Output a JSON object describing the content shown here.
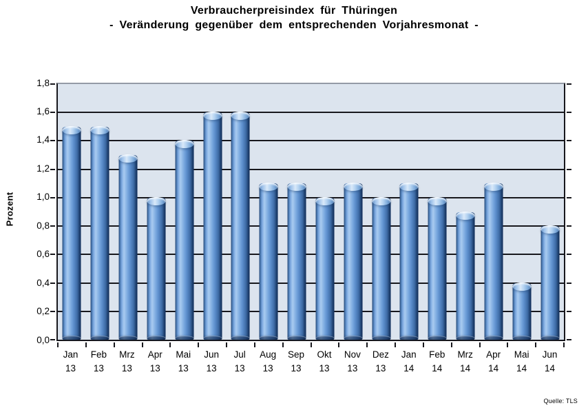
{
  "title": {
    "line1": "Verbraucherpreisindex für Thüringen",
    "line2": "- Veränderung gegenüber dem entsprechenden Vorjahresmonat -"
  },
  "source": "Quelle: TLS",
  "chart_data": {
    "type": "bar",
    "title": "Verbraucherpreisindex für Thüringen - Veränderung gegenüber dem entsprechenden Vorjahresmonat -",
    "xlabel": "",
    "ylabel": "Prozent",
    "ylim": [
      0,
      1.8
    ],
    "ytick_step": 0.2,
    "ytick_labels": [
      "0,0",
      "0,2",
      "0,4",
      "0,6",
      "0,8",
      "1,0",
      "1,2",
      "1,4",
      "1,6",
      "1,8"
    ],
    "grid": true,
    "legend": false,
    "plot_background": "#dce4ee",
    "categories": [
      "Jan 13",
      "Feb 13",
      "Mrz 13",
      "Apr 13",
      "Mai 13",
      "Jun 13",
      "Jul 13",
      "Aug 13",
      "Sep 13",
      "Okt 13",
      "Nov 13",
      "Dez 13",
      "Jan 14",
      "Feb 14",
      "Mrz 14",
      "Apr 14",
      "Mai 14",
      "Jun 14"
    ],
    "values": [
      1.5,
      1.5,
      1.3,
      1.0,
      1.4,
      1.6,
      1.6,
      1.1,
      1.1,
      1.0,
      1.1,
      1.0,
      1.1,
      1.0,
      0.9,
      1.1,
      0.4,
      0.8
    ],
    "colors": {
      "plot_bg": "#dce4ee",
      "grid": "#17171c",
      "border_top": "#939aa6",
      "bar_light": "#a9cbf0",
      "bar_mid": "#5b8dcb",
      "bar_dark": "#1a3a68",
      "bar_edge": "#2c5285"
    }
  }
}
